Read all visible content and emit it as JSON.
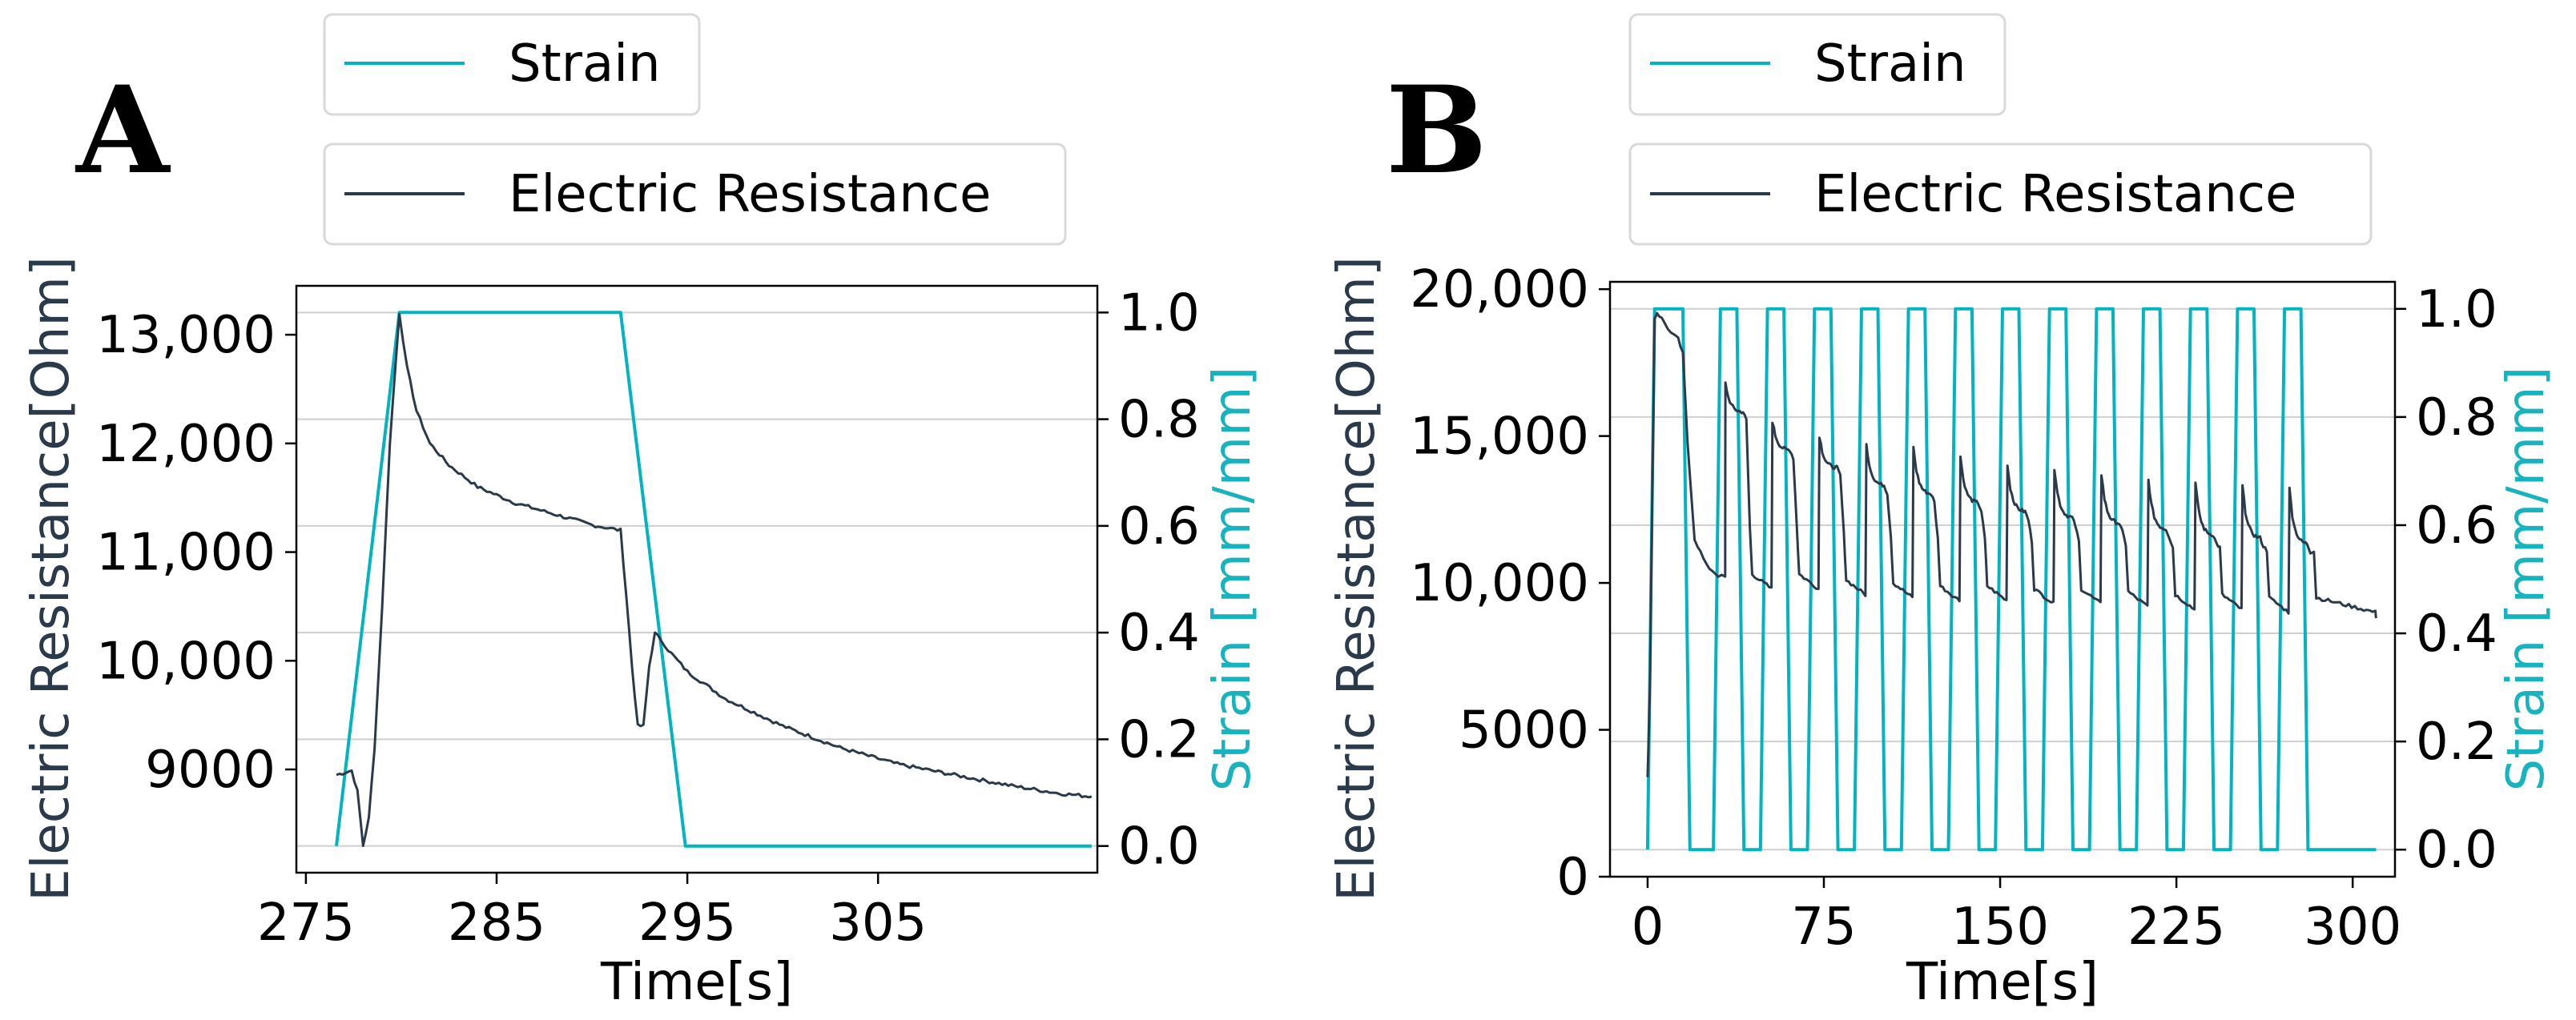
{
  "colors": {
    "strain": "#00b4c0",
    "resistance": "#2b3a4a",
    "strain_axis": "#17b3bf",
    "resistance_axis": "#2b3a4a"
  },
  "chart_data": [
    {
      "type": "line",
      "panel_label": "A",
      "xlabel": "Time[s]",
      "ylabel": "Electric Resistance[Ohm]",
      "y2label": "Strain [mm/mm]",
      "xlim": [
        274.5,
        316.5
      ],
      "ylim": [
        8050,
        13450
      ],
      "y2lim": [
        -0.05,
        1.05
      ],
      "xticks": [
        275,
        285,
        295,
        305
      ],
      "xtick_labels": [
        "275",
        "285",
        "295",
        "305"
      ],
      "yticks": [
        9000,
        10000,
        11000,
        12000,
        13000
      ],
      "ytick_labels": [
        "9000",
        "10,000",
        "11,000",
        "12,000",
        "13,000"
      ],
      "y2ticks": [
        0.0,
        0.2,
        0.4,
        0.6,
        0.8,
        1.0
      ],
      "y2tick_labels": [
        "0.0",
        "0.2",
        "0.4",
        "0.6",
        "0.8",
        "1.0"
      ],
      "legend": [
        "Strain",
        "Electric Resistance"
      ],
      "series": [
        {
          "name": "Strain",
          "axis": "right",
          "x": [
            276.6,
            279.9,
            291.5,
            294.9,
            316.2
          ],
          "y": [
            0.0,
            1.0,
            1.0,
            0.0,
            0.0
          ]
        },
        {
          "name": "Electric Resistance",
          "axis": "left",
          "x": [
            276.6,
            277.4,
            277.7,
            278.0,
            278.3,
            278.6,
            279.0,
            279.4,
            279.9,
            280.3,
            280.8,
            281.5,
            282.5,
            284.0,
            286.0,
            288.0,
            290.0,
            291.5,
            291.8,
            292.1,
            292.4,
            292.7,
            293.0,
            293.3,
            293.6,
            294.0,
            295.0,
            297.0,
            300.0,
            303.0,
            306.0,
            309.0,
            312.0,
            314.5,
            316.2
          ],
          "y": [
            8950,
            8990,
            8800,
            8300,
            8550,
            9200,
            10500,
            12000,
            13200,
            12700,
            12300,
            12000,
            11800,
            11600,
            11450,
            11350,
            11250,
            11200,
            10600,
            9950,
            9400,
            9400,
            9950,
            10250,
            10200,
            10100,
            9900,
            9650,
            9400,
            9200,
            9050,
            8950,
            8850,
            8780,
            8750
          ]
        }
      ]
    },
    {
      "type": "line",
      "panel_label": "B",
      "xlabel": "Time[s]",
      "ylabel": "Electric Resistance[Ohm]",
      "y2label": "Strain [mm/mm]",
      "xlim": [
        -16,
        318
      ],
      "ylim": [
        0,
        20250
      ],
      "y2lim": [
        -0.05,
        1.05
      ],
      "xticks": [
        0,
        75,
        150,
        225,
        300
      ],
      "xtick_labels": [
        "0",
        "75",
        "150",
        "225",
        "300"
      ],
      "yticks": [
        0,
        5000,
        10000,
        15000,
        20000
      ],
      "ytick_labels": [
        "0",
        "5000",
        "10,000",
        "15,000",
        "20,000"
      ],
      "y2ticks": [
        0.0,
        0.2,
        0.4,
        0.6,
        0.8,
        1.0
      ],
      "y2tick_labels": [
        "0.0",
        "0.2",
        "0.4",
        "0.6",
        "0.8",
        "1.0"
      ],
      "legend": [
        "Strain",
        "Electric Resistance"
      ],
      "series": [
        {
          "name": "Strain",
          "axis": "right",
          "cycles": {
            "start": [
              3,
              31,
              51,
              71,
              91,
              111,
              131,
              151,
              171,
              191,
              211,
              231,
              251,
              271
            ],
            "ramp_s": 3,
            "hold_s": 10,
            "end": 310
          }
        },
        {
          "name": "Electric Resistance",
          "axis": "left",
          "initial": {
            "x": [
              0,
              1,
              2,
              3,
              4,
              6,
              10,
              13,
              15,
              17,
              20,
              25,
              30,
              33
            ],
            "y": [
              3400,
              6500,
              13000,
              19000,
              19200,
              19000,
              18500,
              18300,
              17800,
              14800,
              11500,
              10600,
              10250,
              10200
            ]
          },
          "pulses": [
            {
              "t": 33,
              "peak": 16800,
              "plateau": 15800,
              "trough": 9700
            },
            {
              "t": 53,
              "peak": 15500,
              "plateau": 14500,
              "trough": 9700
            },
            {
              "t": 73,
              "peak": 15000,
              "plateau": 13900,
              "trough": 9500
            },
            {
              "t": 93,
              "peak": 14700,
              "plateau": 13300,
              "trough": 9400
            },
            {
              "t": 113,
              "peak": 14600,
              "plateau": 13000,
              "trough": 9300
            },
            {
              "t": 133,
              "peak": 14300,
              "plateau": 12700,
              "trough": 9300
            },
            {
              "t": 153,
              "peak": 14000,
              "plateau": 12400,
              "trough": 9200
            },
            {
              "t": 173,
              "peak": 13900,
              "plateau": 12200,
              "trough": 9200
            },
            {
              "t": 193,
              "peak": 13700,
              "plateau": 12000,
              "trough": 9100
            },
            {
              "t": 213,
              "peak": 13500,
              "plateau": 11800,
              "trough": 9000
            },
            {
              "t": 233,
              "peak": 13400,
              "plateau": 11600,
              "trough": 9000
            },
            {
              "t": 253,
              "peak": 13300,
              "plateau": 11500,
              "trough": 8900
            },
            {
              "t": 273,
              "peak": 13200,
              "plateau": 11300,
              "trough": 8900
            }
          ],
          "end": {
            "x": 310,
            "y": 8800
          }
        }
      ]
    }
  ]
}
